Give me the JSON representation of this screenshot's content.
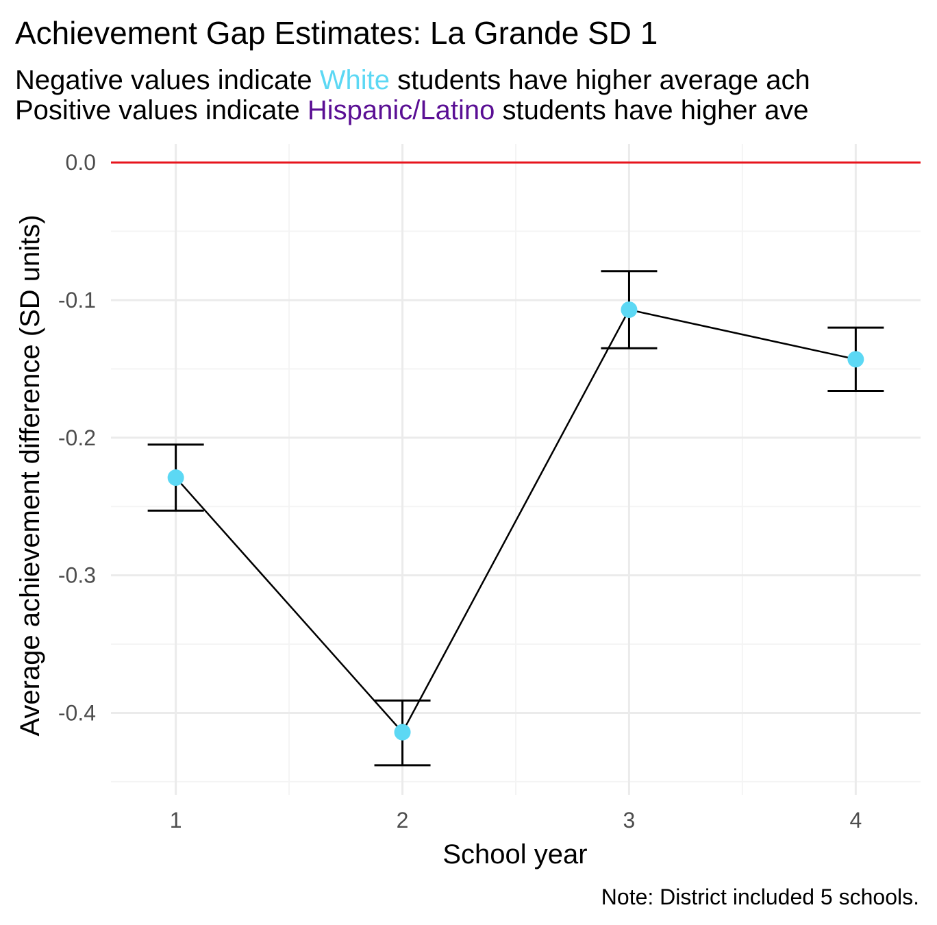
{
  "chart_data": {
    "type": "line",
    "title": "Achievement Gap Estimates: La Grande SD 1",
    "subtitle": {
      "line1": {
        "before": "Negative values indicate ",
        "highlight": "White",
        "after": " students have higher average ach"
      },
      "line2": {
        "before": "Positive values indicate ",
        "highlight": "Hispanic/Latino",
        "after": " students have higher ave"
      }
    },
    "xlabel": "School year",
    "ylabel": "Average achievement difference (SD units)",
    "caption": "Note: District included 5 schools.",
    "x": [
      1,
      2,
      3,
      4
    ],
    "x_tick_labels": [
      "1",
      "2",
      "3",
      "4"
    ],
    "xlim": [
      0.714,
      4.286
    ],
    "ylim": [
      -0.4595,
      0.0135
    ],
    "y_ticks": [
      0.0,
      -0.1,
      -0.2,
      -0.3,
      -0.4
    ],
    "y_tick_labels": [
      "0.0",
      "-0.1",
      "-0.2",
      "-0.3",
      "-0.4"
    ],
    "series": [
      {
        "values": [
          -0.229,
          -0.414,
          -0.107,
          -0.143
        ],
        "ci_upper": [
          -0.205,
          -0.391,
          -0.079,
          -0.12
        ],
        "ci_lower": [
          -0.253,
          -0.438,
          -0.135,
          -0.166
        ]
      }
    ],
    "reference_line": {
      "y": 0.0,
      "color": "#e8141c"
    },
    "grid": true,
    "colors": {
      "point": "#5cd8f4",
      "line": "#000000",
      "errorbar": "#000000",
      "white_highlight": "#5cd8f4",
      "hispanic_highlight": "#5a0f94",
      "grid_major": "#ebebeb",
      "grid_minor": "#f4f4f4",
      "tick_text": "#4d4d4d",
      "text": "#000000"
    }
  }
}
